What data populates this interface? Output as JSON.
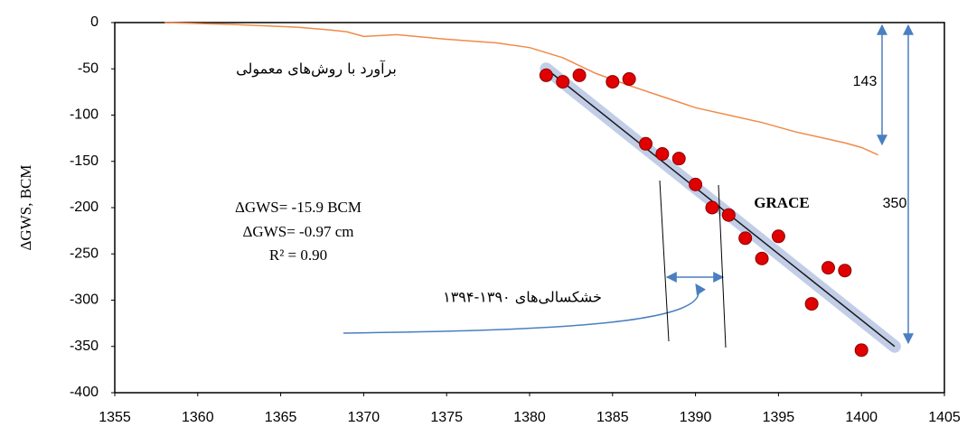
{
  "chart_data": {
    "type": "scatter",
    "y_label": "ΔGWS, BCM",
    "xlim": [
      1355,
      1405
    ],
    "xticks": [
      1355,
      1360,
      1365,
      1370,
      1375,
      1380,
      1385,
      1390,
      1395,
      1400,
      1405
    ],
    "ylim": [
      -400,
      0
    ],
    "yticks": [
      0,
      -50,
      -100,
      -150,
      -200,
      -250,
      -300,
      -350,
      -400
    ],
    "series": [
      {
        "name": "GRACE",
        "type": "scatter",
        "color": "#e00000",
        "x": [
          1381,
          1382,
          1383,
          1385,
          1386,
          1387,
          1388,
          1389,
          1390,
          1391,
          1392,
          1393,
          1394,
          1395,
          1397,
          1398,
          1399,
          1400
        ],
        "values": [
          -57,
          -64,
          -57,
          -64,
          -61,
          -131,
          -142,
          -147,
          -175,
          -200,
          -208,
          -233,
          -255,
          -231,
          -304,
          -265,
          -268,
          -354
        ]
      },
      {
        "name": "برآورد با روش‌های معمولی",
        "type": "line",
        "color": "#f08a4b",
        "x": [
          1358,
          1362,
          1366,
          1368,
          1369,
          1370,
          1372,
          1375,
          1378,
          1380,
          1382,
          1384,
          1386,
          1388,
          1390,
          1392,
          1394,
          1396,
          1398,
          1399,
          1400,
          1401
        ],
        "values": [
          0,
          -2,
          -5,
          -8,
          -10,
          -15,
          -13,
          -18,
          -22,
          -27,
          -38,
          -55,
          -68,
          -80,
          -92,
          -100,
          -108,
          -118,
          -126,
          -130,
          -135,
          -143
        ]
      },
      {
        "type": "trend",
        "color": "#1a1a1a",
        "x": [
          1381,
          1402
        ],
        "values": [
          -50,
          -350
        ]
      }
    ],
    "annotations": [
      "ΔGWS= -15.9 BCM",
      "ΔGWS= -0.97 cm",
      "R² = 0.90",
      "143",
      "350",
      "خشکسالی‌های ۱۳۹۰-۱۳۹۴"
    ]
  }
}
